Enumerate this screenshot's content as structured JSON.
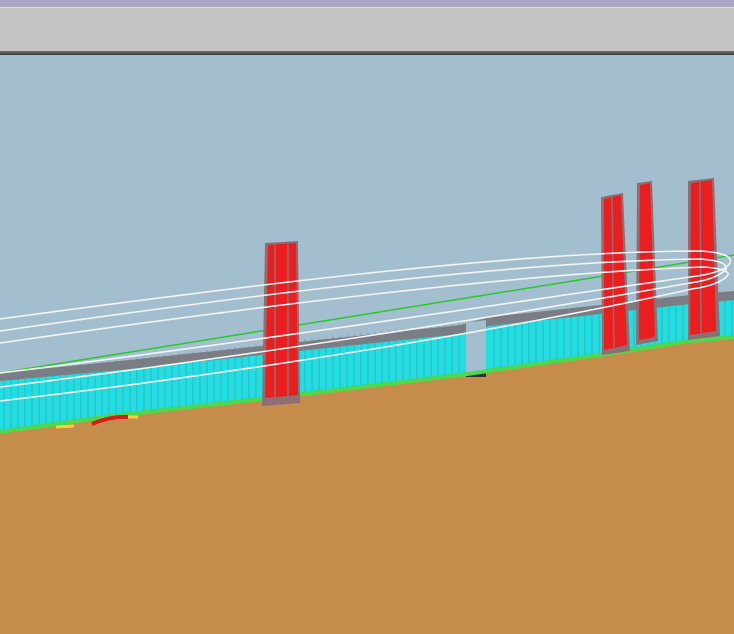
{
  "window": {
    "title_bar_color": "#a9a9c7",
    "toolbar_color": "#c3c3c3"
  },
  "viewport": {
    "sky_color": "#a3bfcf",
    "ground_color": "#c68c4c",
    "ground_line_color": "#4cd94c",
    "barrier_color": "#1ee0e4",
    "barrier_shadow_color": "#7a7d83",
    "tower_color": "#ea1e1e",
    "tower_shadow_color": "#8d6f73",
    "trajectory_color": "#f4f4f4",
    "reference_line_color": "#28c828"
  }
}
